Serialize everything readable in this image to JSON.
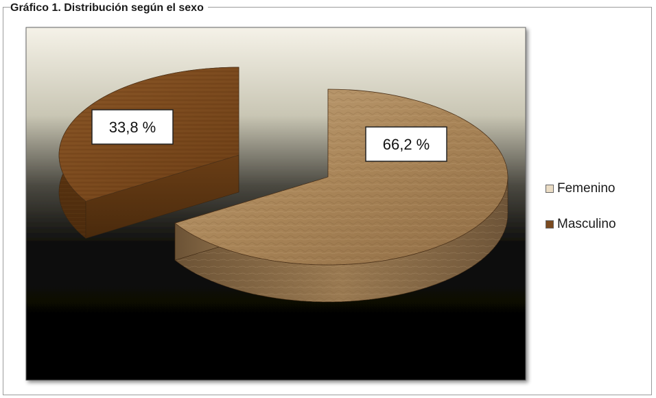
{
  "chart_data": {
    "type": "pie",
    "title": "Gráfico 1. Distribución según el sexo",
    "categories": [
      "Femenino",
      "Masculino"
    ],
    "values": [
      66.2,
      33.8
    ],
    "data_labels": [
      "66,2 %",
      "33,8 %"
    ],
    "legend_position": "right",
    "colors": [
      "#b08a5c",
      "#7a4a20"
    ]
  },
  "legend": {
    "items": [
      {
        "label": "Femenino",
        "color": "#e8d8c0"
      },
      {
        "label": "Masculino",
        "color": "#7a4a20"
      }
    ]
  }
}
